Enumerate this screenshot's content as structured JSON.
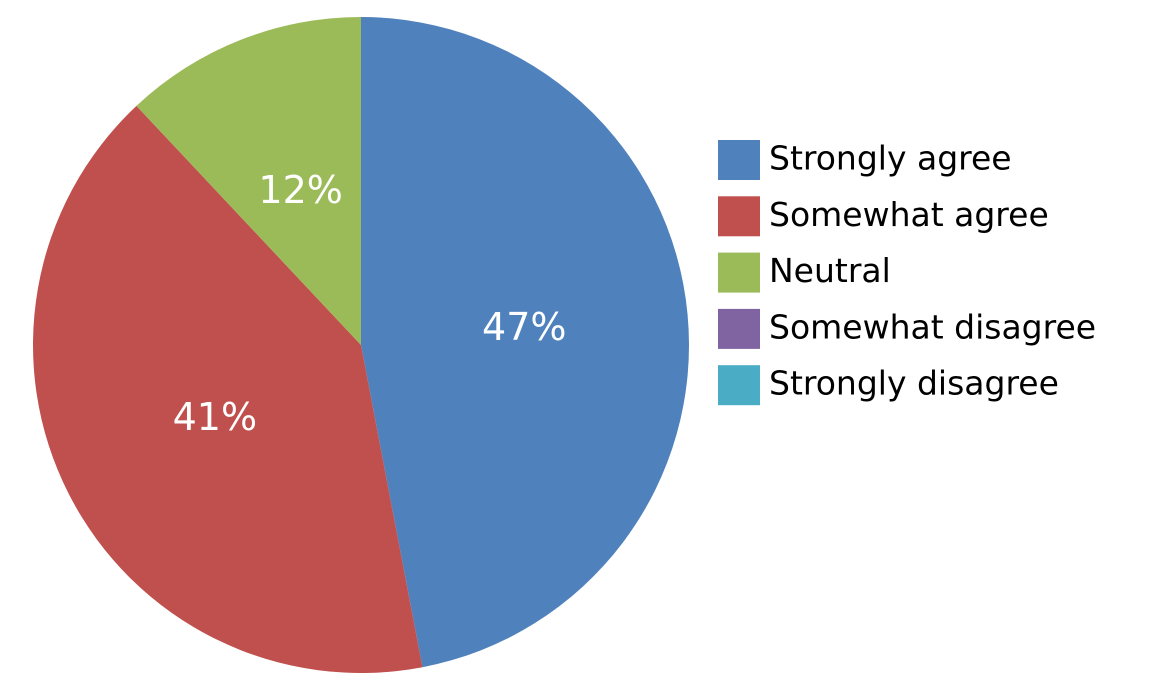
{
  "chart_data": {
    "type": "pie",
    "categories": [
      "Strongly agree",
      "Somewhat agree",
      "Neutral",
      "Somewhat disagree",
      "Strongly disagree"
    ],
    "values": [
      47,
      41,
      12,
      0,
      0
    ],
    "value_labels": [
      "47%",
      "41%",
      "12%",
      null,
      null
    ],
    "colors": [
      "#4f81bd",
      "#c0504d",
      "#9bbb59",
      "#8064a2",
      "#4bacc6"
    ],
    "legend": "right"
  }
}
